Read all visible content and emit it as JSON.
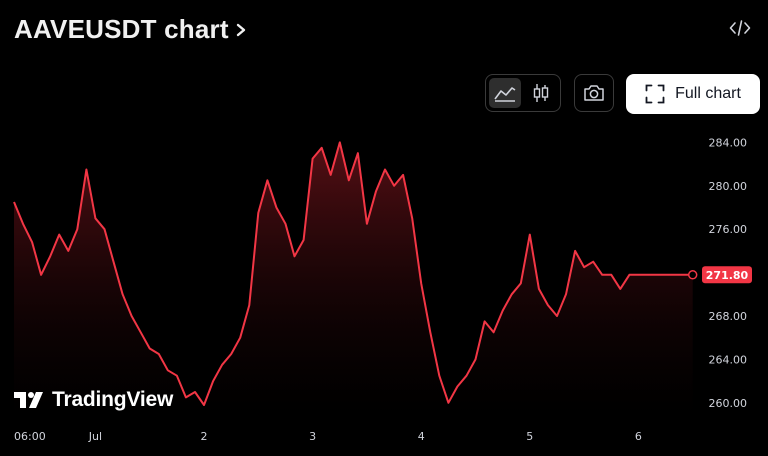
{
  "header": {
    "title": "AAVEUSDT chart",
    "title_chevron_icon": "chevron-right-icon",
    "embed_icon": "code-embed-icon"
  },
  "toolbar": {
    "chart_styles": [
      {
        "name": "area",
        "icon": "area-chart-icon",
        "active": true
      },
      {
        "name": "candles",
        "icon": "candlestick-icon",
        "active": false
      }
    ],
    "snapshot_icon": "camera-icon",
    "full_chart_label": "Full chart",
    "full_chart_icon": "fullscreen-icon"
  },
  "branding": {
    "logo_text": "TradingView",
    "logo_icon": "tradingview-logo-icon"
  },
  "colors": {
    "line": "#f23645",
    "area_top": "#5c1016",
    "price_tag": "#f23645",
    "axis_text": "#d1d4dc"
  },
  "chart_data": {
    "type": "area",
    "symbol": "AAVEUSDT",
    "last_price": "271.80",
    "y_ticks": [
      "284.00",
      "280.00",
      "276.00",
      "272.00",
      "268.00",
      "264.00",
      "260.00"
    ],
    "ylim": [
      258.6,
      285.6
    ],
    "x_ticks": [
      {
        "label": "06:00",
        "t": 0
      },
      {
        "label": "Jul",
        "t": 18
      },
      {
        "label": "2",
        "t": 42
      },
      {
        "label": "3",
        "t": 66
      },
      {
        "label": "4",
        "t": 90
      },
      {
        "label": "5",
        "t": 114
      },
      {
        "label": "6",
        "t": 138
      }
    ],
    "t_range": [
      0,
      150.5
    ],
    "x": [
      0,
      2,
      4,
      6,
      8,
      10,
      12,
      14,
      16,
      18,
      20,
      22,
      24,
      26,
      28,
      30,
      32,
      34,
      36,
      38,
      40,
      42,
      44,
      46,
      48,
      50,
      52,
      54,
      56,
      58,
      60,
      62,
      64,
      66,
      68,
      70,
      72,
      74,
      76,
      78,
      80,
      82,
      84,
      86,
      88,
      90,
      92,
      94,
      96,
      98,
      100,
      102,
      104,
      106,
      108,
      110,
      112,
      114,
      116,
      118,
      120,
      122,
      124,
      126,
      128,
      130,
      132,
      134,
      136,
      138,
      140,
      142,
      144,
      146,
      148,
      150
    ],
    "values": [
      278.5,
      276.5,
      274.8,
      271.8,
      273.5,
      275.5,
      274.0,
      276.0,
      281.5,
      277.0,
      276.0,
      273.0,
      270.0,
      268.0,
      266.5,
      265.0,
      264.5,
      263.0,
      262.5,
      260.5,
      261.0,
      259.8,
      262.0,
      263.5,
      264.5,
      266.0,
      269.0,
      277.5,
      280.5,
      278.0,
      276.5,
      273.5,
      275.0,
      282.5,
      283.5,
      281.0,
      284.0,
      280.5,
      283.0,
      276.5,
      279.5,
      281.5,
      280.0,
      281.0,
      277.0,
      271.0,
      266.5,
      262.5,
      260.0,
      261.5,
      262.5,
      264.0,
      267.5,
      266.5,
      268.5,
      270.0,
      271.0,
      275.5,
      270.5,
      269.0,
      268.0,
      270.0,
      274.0,
      272.5,
      273.0,
      271.8,
      271.8,
      270.5,
      271.8,
      271.8,
      271.8,
      271.8,
      271.8,
      271.8,
      271.8,
      271.8
    ]
  }
}
